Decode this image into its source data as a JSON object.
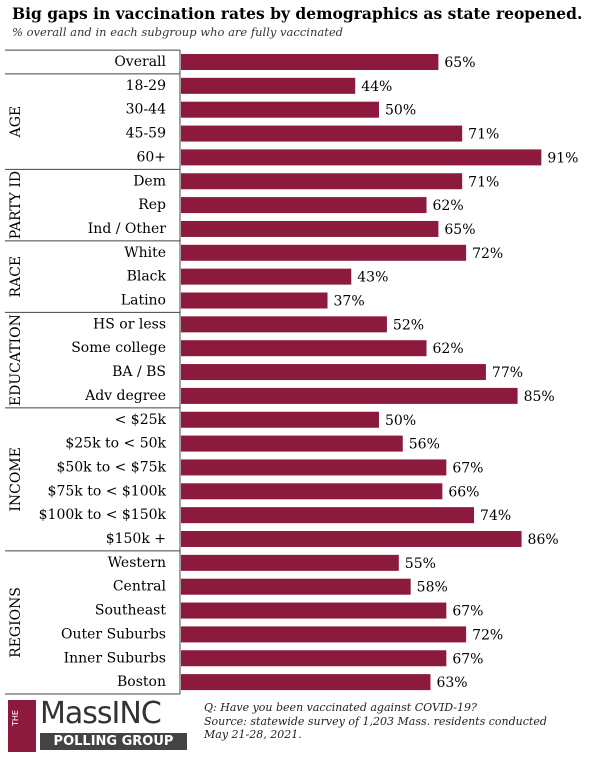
{
  "chart_data": {
    "type": "bar",
    "title": "Big gaps in vaccination rates by demographics as state reopened.",
    "subtitle": "% overall and in each subgroup who are fully vaccinated",
    "color": "#8b1a3d",
    "groups": [
      {
        "categories": [
          "Overall"
        ],
        "values": [
          65
        ],
        "value_labels": [
          "65%"
        ]
      },
      {
        "name": "AGE",
        "categories": [
          "18-29",
          "30-44",
          "45-59",
          "60+"
        ],
        "values": [
          44,
          50,
          71,
          91
        ],
        "value_labels": [
          "44%",
          "50%",
          "71%",
          "91%"
        ]
      },
      {
        "name": "PARTY ID",
        "categories": [
          "Dem",
          "Rep",
          "Ind / Other"
        ],
        "values": [
          71,
          62,
          65
        ],
        "value_labels": [
          "71%",
          "62%",
          "65%"
        ]
      },
      {
        "name": "RACE",
        "categories": [
          "White",
          "Black",
          "Latino"
        ],
        "values": [
          72,
          43,
          37
        ],
        "value_labels": [
          "72%",
          "43%",
          "37%"
        ]
      },
      {
        "name": "EDUCATION",
        "categories": [
          "HS or less",
          "Some college",
          "BA / BS",
          "Adv degree"
        ],
        "values": [
          52,
          62,
          77,
          85
        ],
        "value_labels": [
          "52%",
          "62%",
          "77%",
          "85%"
        ]
      },
      {
        "name": "INCOME",
        "categories": [
          "< $25k",
          "$25k to < 50k",
          "$50k to < $75k",
          "$75k to < $100k",
          "$100k to < $150k",
          "$150k +"
        ],
        "values": [
          50,
          56,
          67,
          66,
          74,
          86
        ],
        "value_labels": [
          "50%",
          "56%",
          "67%",
          "66%",
          "74%",
          "86%"
        ]
      },
      {
        "name": "REGIONS",
        "categories": [
          "Western",
          "Central",
          "Southeast",
          "Outer Suburbs",
          "Inner Suburbs",
          "Boston"
        ],
        "values": [
          55,
          58,
          67,
          72,
          67,
          63
        ],
        "value_labels": [
          "55%",
          "58%",
          "67%",
          "72%",
          "67%",
          "63%"
        ]
      }
    ],
    "question": "Q: Have you been vaccinated against COVID-19?",
    "source": "Source: statewide survey of 1,203 Mass. residents conducted May 21-28, 2021.",
    "logo": {
      "prefix": "THE",
      "name": "MassINC",
      "tagline": "POLLING GROUP"
    }
  }
}
